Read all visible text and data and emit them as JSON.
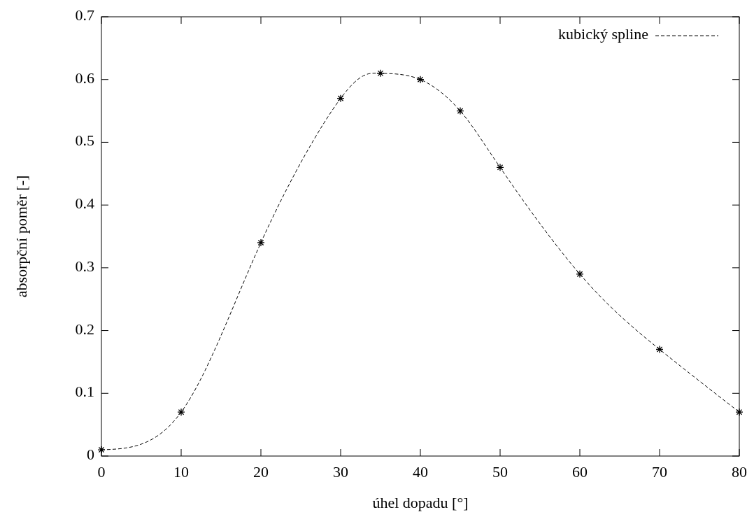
{
  "chart_data": {
    "type": "scatter",
    "xlabel": "úhel dopadu [°]",
    "ylabel": "absorpční poměr [-]",
    "x": [
      0,
      10,
      20,
      30,
      35,
      40,
      45,
      50,
      60,
      70,
      80
    ],
    "xlim": [
      0,
      80
    ],
    "xticks": [
      0,
      10,
      20,
      30,
      40,
      50,
      60,
      70,
      80
    ],
    "ylim": [
      0,
      0.7
    ],
    "yticks": [
      0,
      0.1,
      0.2,
      0.3,
      0.4,
      0.5,
      0.6,
      0.7
    ],
    "legend": "top right",
    "series": [
      {
        "color": "#000000",
        "marker": "cross",
        "values": [
          0.01,
          0.07,
          0.34,
          0.57,
          0.61,
          0.6,
          0.55,
          0.46,
          0.29,
          0.17,
          0.07
        ]
      },
      {
        "type": "line",
        "name": "kubický spline",
        "color": "#000000",
        "line_style": "dashed",
        "marker": "none",
        "values": [
          0.01,
          0.07,
          0.34,
          0.57,
          0.61,
          0.6,
          0.55,
          0.46,
          0.29,
          0.17,
          0.07
        ]
      }
    ]
  }
}
